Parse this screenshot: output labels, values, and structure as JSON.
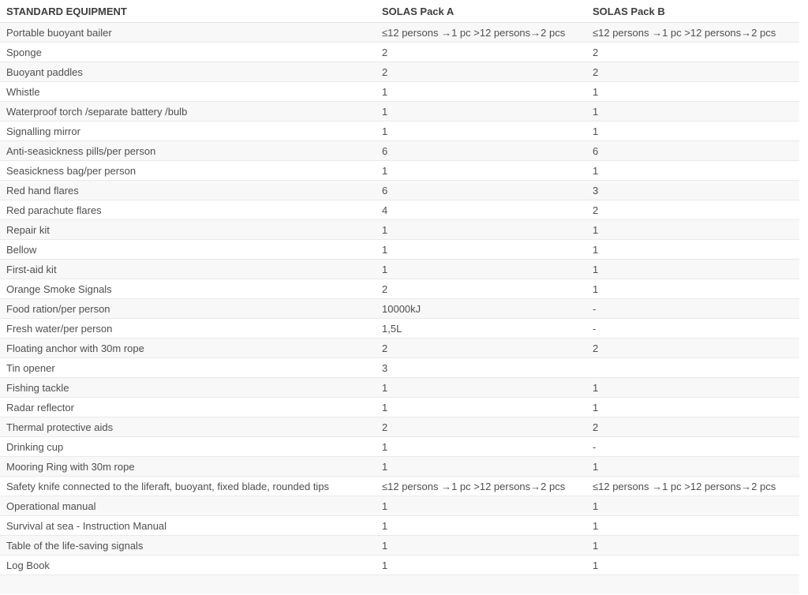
{
  "table": {
    "columns": [
      "STANDARD EQUIPMENT",
      "SOLAS Pack A",
      "SOLAS Pack B"
    ],
    "rows": [
      {
        "item": "Portable buoyant bailer",
        "pack_a": "≤12 persons →1 pc >12 persons→2 pcs",
        "pack_b": "≤12 persons →1 pc >12 persons→2 pcs"
      },
      {
        "item": "Sponge",
        "pack_a": "2",
        "pack_b": "2"
      },
      {
        "item": "Buoyant paddles",
        "pack_a": "2",
        "pack_b": "2"
      },
      {
        "item": "Whistle",
        "pack_a": "1",
        "pack_b": "1"
      },
      {
        "item": "Waterproof torch /separate battery /bulb",
        "pack_a": "1",
        "pack_b": "1"
      },
      {
        "item": "Signalling mirror",
        "pack_a": "1",
        "pack_b": "1"
      },
      {
        "item": "Anti-seasickness pills/per person",
        "pack_a": "6",
        "pack_b": "6"
      },
      {
        "item": "Seasickness bag/per person",
        "pack_a": "1",
        "pack_b": "1"
      },
      {
        "item": "Red hand flares",
        "pack_a": "6",
        "pack_b": "3"
      },
      {
        "item": "Red parachute flares",
        "pack_a": "4",
        "pack_b": "2"
      },
      {
        "item": "Repair kit",
        "pack_a": "1",
        "pack_b": "1"
      },
      {
        "item": "Bellow",
        "pack_a": "1",
        "pack_b": "1"
      },
      {
        "item": "First-aid kit",
        "pack_a": "1",
        "pack_b": "1"
      },
      {
        "item": "Orange Smoke Signals",
        "pack_a": "2",
        "pack_b": "1"
      },
      {
        "item": "Food ration/per person",
        "pack_a": "10000kJ",
        "pack_b": "-"
      },
      {
        "item": "Fresh water/per person",
        "pack_a": "1,5L",
        "pack_b": "-"
      },
      {
        "item": "Floating anchor with 30m rope",
        "pack_a": "2",
        "pack_b": "2"
      },
      {
        "item": "Tin opener",
        "pack_a": "3",
        "pack_b": ""
      },
      {
        "item": "Fishing tackle",
        "pack_a": "1",
        "pack_b": "1"
      },
      {
        "item": "Radar reflector",
        "pack_a": "1",
        "pack_b": "1"
      },
      {
        "item": "Thermal protective aids",
        "pack_a": "2",
        "pack_b": "2"
      },
      {
        "item": "Drinking cup",
        "pack_a": "1",
        "pack_b": "-"
      },
      {
        "item": "Mooring Ring with 30m rope",
        "pack_a": "1",
        "pack_b": "1"
      },
      {
        "item": "Safety knife connected to the liferaft, buoyant, fixed blade, rounded tips",
        "pack_a": "≤12 persons →1 pc >12 persons→2 pcs",
        "pack_b": "≤12 persons →1 pc >12 persons→2 pcs"
      },
      {
        "item": "Operational manual",
        "pack_a": "1",
        "pack_b": "1"
      },
      {
        "item": "Survival at sea - Instruction Manual",
        "pack_a": "1",
        "pack_b": "1"
      },
      {
        "item": "Table of the life-saving signals",
        "pack_a": "1",
        "pack_b": "1"
      },
      {
        "item": "Log Book",
        "pack_a": "1",
        "pack_b": "1"
      }
    ]
  },
  "colors": {
    "stripe_row_background": "#f8f8f8",
    "row_border": "#e9e9e9",
    "header_text": "#3d3d3d",
    "cell_text": "#4f4f4f"
  }
}
